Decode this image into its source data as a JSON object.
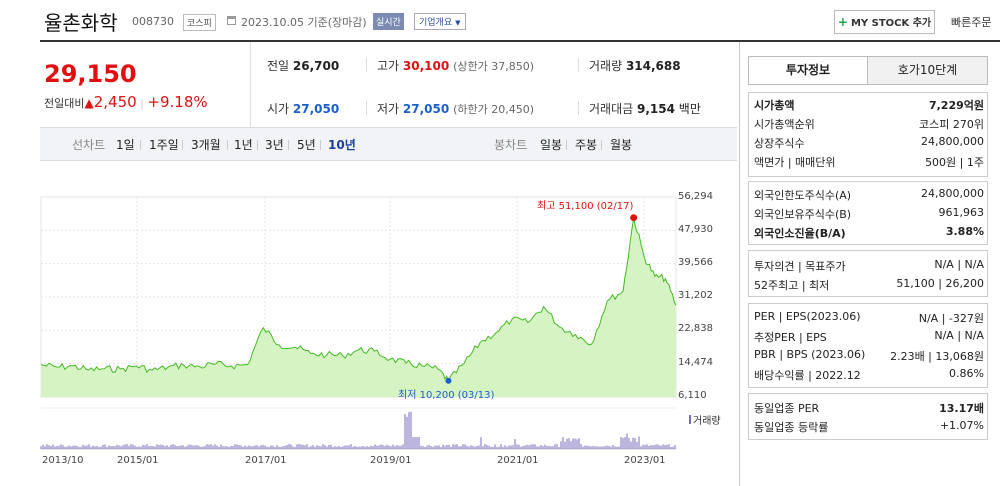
{
  "header": {
    "name": "율촌화학",
    "code": "008730",
    "market": "코스피",
    "date": "2023.10.05",
    "basis": "기준(장마감)",
    "realtime": "실시간",
    "corp_info": "기업개요",
    "mystock": "MY STOCK 추가",
    "fast_order": "빠른주문"
  },
  "quote": {
    "price": "29,150",
    "diff_label": "전일대비",
    "diff_value": "2,450",
    "diff_pct": "+9.18%",
    "prev_label": "전일",
    "prev": "26,700",
    "high_label": "고가",
    "high": "30,100",
    "upper_limit": "(상한가 37,850)",
    "volume_label": "거래량",
    "volume": "314,688",
    "open_label": "시가",
    "open": "27,050",
    "low_label": "저가",
    "low": "27,050",
    "lower_limit": "(하한가 20,450)",
    "amount_label": "거래대금",
    "amount": "9,154",
    "amount_unit": "백만"
  },
  "period_tabs": {
    "line_label": "선차트",
    "items": [
      "1일",
      "1주일",
      "3개월",
      "1년",
      "3년",
      "5년",
      "10년"
    ],
    "selected": "10년",
    "candle_label": "봉차트",
    "candle_items": [
      "일봉",
      "주봉",
      "월봉"
    ]
  },
  "chart_data": {
    "type": "area",
    "title": "",
    "y_ticks": [
      "56,294",
      "47,930",
      "39,566",
      "31,202",
      "22,838",
      "14,474",
      "6,110"
    ],
    "ylim": [
      6110,
      56294
    ],
    "x_ticks": [
      "2013/10",
      "2015/01",
      "2017/01",
      "2019/01",
      "2021/01",
      "2023/01"
    ],
    "x": [
      "2013/10",
      "2014/01",
      "2014/04",
      "2014/07",
      "2014/10",
      "2015/01",
      "2015/04",
      "2015/07",
      "2015/10",
      "2016/01",
      "2016/04",
      "2016/07",
      "2016/10",
      "2017/01",
      "2017/04",
      "2017/07",
      "2017/10",
      "2018/01",
      "2018/04",
      "2018/07",
      "2018/10",
      "2019/01",
      "2019/04",
      "2019/07",
      "2019/10",
      "2020/01",
      "2020/03",
      "2020/06",
      "2020/09",
      "2020/12",
      "2021/03",
      "2021/06",
      "2021/09",
      "2021/12",
      "2022/03",
      "2022/06",
      "2022/09",
      "2022/12",
      "2023/02",
      "2023/04",
      "2023/06",
      "2023/08",
      "2023/10"
    ],
    "y": [
      14200,
      13600,
      13900,
      12900,
      13200,
      13100,
      13900,
      12800,
      13600,
      14100,
      13700,
      14400,
      13900,
      14200,
      23500,
      19200,
      18600,
      17000,
      16700,
      16500,
      17900,
      17600,
      15600,
      14600,
      13900,
      13100,
      10200,
      14600,
      19800,
      22300,
      25600,
      24800,
      28800,
      23700,
      21800,
      19300,
      30200,
      32700,
      51100,
      41200,
      36400,
      35800,
      29150
    ],
    "max_label": "최고 51,100 (02/17)",
    "min_label": "최저 10,200 (03/13)",
    "volume_label": "거래량",
    "colors": {
      "line": "#44bb22",
      "fill": "#d6f3c4",
      "max": "#e01010",
      "min": "#1a5fcf",
      "volume": "#7a6bbd"
    }
  },
  "side": {
    "tab1": "투자정보",
    "tab2": "호가10단계",
    "g1": [
      {
        "l": "시가총액",
        "r": "7,229억원"
      },
      {
        "l": "시가총액순위",
        "r": "코스피 270위"
      },
      {
        "l": "상장주식수",
        "r": "24,800,000"
      },
      {
        "l": "액면가 | 매매단위",
        "r": "500원 | 1주"
      }
    ],
    "g2": [
      {
        "l": "외국인한도주식수(A)",
        "r": "24,800,000"
      },
      {
        "l": "외국인보유주식수(B)",
        "r": "961,963"
      },
      {
        "l": "외국인소진율(B/A)",
        "r": "3.88%"
      }
    ],
    "g3": [
      {
        "l": "투자의견 | 목표주가",
        "r": "N/A | N/A"
      },
      {
        "l": "52주최고 | 최저",
        "r": "51,100 | 26,200"
      }
    ],
    "g4": [
      {
        "l": "PER | EPS(2023.06)",
        "r": "N/A | -327원"
      },
      {
        "l": "추정PER | EPS",
        "r": "N/A | N/A"
      },
      {
        "l": "PBR | BPS (2023.06)",
        "r": "2.23배 | 13,068원"
      },
      {
        "l": "배당수익률 | 2022.12",
        "r": "0.86%"
      }
    ],
    "g5": [
      {
        "l": "동일업종 PER",
        "r": "13.17배"
      },
      {
        "l": "동일업종 등락률",
        "r": "+1.07%"
      }
    ]
  }
}
